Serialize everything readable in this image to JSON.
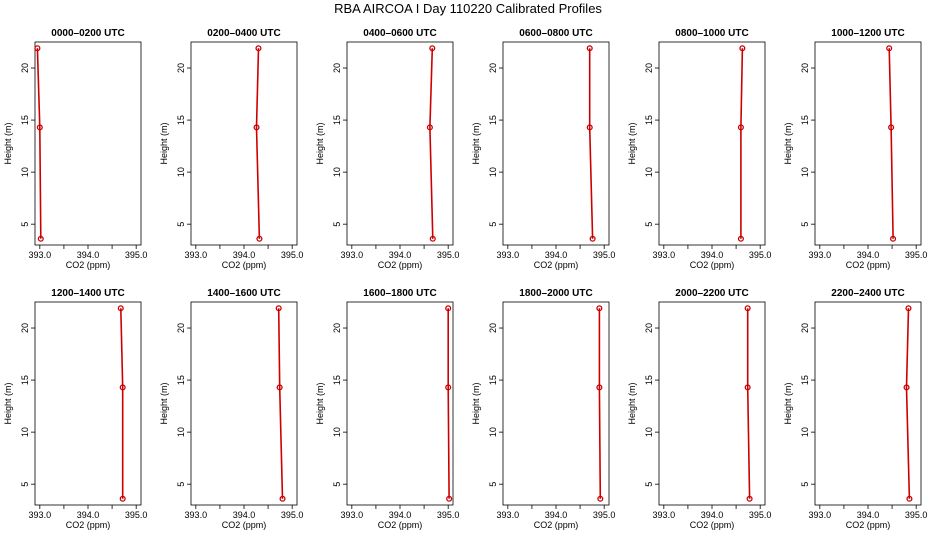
{
  "title": "RBA AIRCOA I  Day 110220  Calibrated Profiles",
  "chart_data": {
    "type": "line",
    "xlabel": "CO2 (ppm)",
    "ylabel": "Height (m)",
    "xlim": [
      392.9,
      395.1
    ],
    "ylim": [
      3.0,
      22.5
    ],
    "xticks": [
      "393.0",
      "394.0",
      "395.0"
    ],
    "yticks": [
      "5",
      "10",
      "15",
      "20"
    ],
    "heights": [
      3.6,
      14.3,
      21.9
    ],
    "line_color": "#cc0000",
    "panels": [
      {
        "title": "0000–0200 UTC",
        "co2": [
          393.02,
          393.0,
          392.95
        ]
      },
      {
        "title": "0200–0400 UTC",
        "co2": [
          394.32,
          394.26,
          394.3
        ]
      },
      {
        "title": "0400–0600 UTC",
        "co2": [
          394.68,
          394.62,
          394.67
        ]
      },
      {
        "title": "0600–0800 UTC",
        "co2": [
          394.76,
          394.7,
          394.7
        ]
      },
      {
        "title": "0800–1000 UTC",
        "co2": [
          394.6,
          394.6,
          394.63
        ]
      },
      {
        "title": "1000–1200 UTC",
        "co2": [
          394.52,
          394.48,
          394.44
        ]
      },
      {
        "title": "1200–1400 UTC",
        "co2": [
          394.72,
          394.72,
          394.68
        ]
      },
      {
        "title": "1400–1600 UTC",
        "co2": [
          394.8,
          394.74,
          394.72
        ]
      },
      {
        "title": "1600–1800 UTC",
        "co2": [
          395.02,
          395.0,
          395.0
        ]
      },
      {
        "title": "1800–2000 UTC",
        "co2": [
          394.92,
          394.9,
          394.9
        ]
      },
      {
        "title": "2000–2200 UTC",
        "co2": [
          394.78,
          394.74,
          394.74
        ]
      },
      {
        "title": "2200–2400 UTC",
        "co2": [
          394.86,
          394.8,
          394.84
        ]
      }
    ]
  }
}
